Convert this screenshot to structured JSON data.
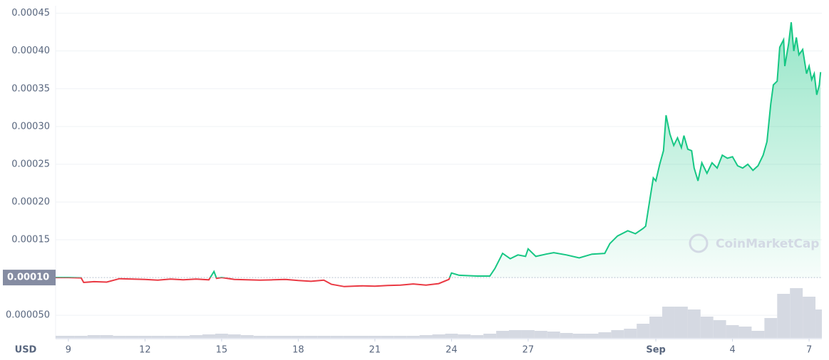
{
  "chart_data": {
    "type": "line",
    "axis_label": "USD",
    "watermark": "CoinMarketCap",
    "baseline": 0.0001,
    "up_color": "#16c784",
    "down_color": "#ea3943",
    "grid": true,
    "xlim": [
      8.5,
      38.5
    ],
    "ylim": [
      2e-05,
      0.00046
    ],
    "xticks": [
      9,
      12,
      15,
      18,
      21,
      24,
      27,
      {
        "value": 32,
        "label": "Sep"
      },
      {
        "value": 35,
        "label": "4"
      },
      {
        "value": 38,
        "label": "7"
      }
    ],
    "yticks": [
      0.00045,
      {
        "value": 0.0004,
        "label": "0.00040"
      },
      0.00035,
      {
        "value": 0.0003,
        "label": "0.00030"
      },
      0.00025,
      {
        "value": 0.0002,
        "label": "0.00020"
      },
      0.00015,
      {
        "value": 0.0001,
        "label": "0.00010"
      },
      {
        "value": 5e-05,
        "label": "0.000050"
      }
    ],
    "x": [
      8.5,
      9,
      9.5,
      9.6,
      10,
      10.5,
      11,
      11.5,
      12,
      12.5,
      13,
      13.5,
      14,
      14.5,
      14.7,
      14.8,
      15,
      15.5,
      16,
      16.5,
      17,
      17.5,
      18,
      18.5,
      19,
      19.3,
      19.8,
      20.5,
      21,
      21.5,
      22,
      22.5,
      23,
      23.5,
      23.9,
      24,
      24.3,
      25,
      25.5,
      25.7,
      26,
      26.3,
      26.6,
      26.9,
      27,
      27.3,
      27.7,
      28,
      28.5,
      29,
      29.5,
      30,
      30.2,
      30.5,
      30.9,
      31.2,
      31.5,
      31.6,
      31.75,
      31.9,
      32,
      32.15,
      32.3,
      32.4,
      32.55,
      32.7,
      32.85,
      33,
      33.1,
      33.25,
      33.4,
      33.5,
      33.65,
      33.8,
      34,
      34.2,
      34.4,
      34.6,
      34.8,
      35,
      35.2,
      35.4,
      35.6,
      35.8,
      36,
      36.2,
      36.35,
      36.5,
      36.6,
      36.75,
      36.85,
      37,
      37.05,
      37.2,
      37.3,
      37.4,
      37.5,
      37.6,
      37.75,
      37.9,
      38,
      38.1,
      38.2,
      38.3,
      38.4,
      38.45
    ],
    "values": [
      0.0001,
      0.0001,
      9.95e-05,
      9.35e-05,
      9.45e-05,
      9.4e-05,
      9.85e-05,
      9.8e-05,
      9.75e-05,
      9.65e-05,
      9.8e-05,
      9.7e-05,
      9.8e-05,
      9.7e-05,
      0.000108,
      9.9e-05,
      0.0001,
      9.75e-05,
      9.7e-05,
      9.65e-05,
      9.7e-05,
      9.75e-05,
      9.6e-05,
      9.5e-05,
      9.65e-05,
      9.1e-05,
      8.8e-05,
      8.9e-05,
      8.85e-05,
      8.95e-05,
      9e-05,
      9.15e-05,
      9e-05,
      9.2e-05,
      9.75e-05,
      0.000106,
      0.000103,
      0.000102,
      0.000102,
      0.000112,
      0.000132,
      0.000125,
      0.00013,
      0.000128,
      0.000138,
      0.000128,
      0.000131,
      0.000133,
      0.00013,
      0.000126,
      0.000131,
      0.000132,
      0.000145,
      0.000155,
      0.000162,
      0.000158,
      0.000165,
      0.000168,
      0.0002,
      0.000232,
      0.000228,
      0.00025,
      0.000268,
      0.000315,
      0.00029,
      0.000275,
      0.000285,
      0.000272,
      0.000288,
      0.00027,
      0.000268,
      0.000245,
      0.000228,
      0.000252,
      0.000238,
      0.000252,
      0.000245,
      0.000262,
      0.000258,
      0.00026,
      0.000248,
      0.000245,
      0.00025,
      0.000242,
      0.000248,
      0.000262,
      0.00028,
      0.00033,
      0.000355,
      0.00036,
      0.000405,
      0.000415,
      0.00038,
      0.00041,
      0.000438,
      0.0004,
      0.000418,
      0.000395,
      0.000402,
      0.00037,
      0.00038,
      0.000362,
      0.00037,
      0.000342,
      0.000355,
      0.000372
    ],
    "volume": {
      "color": "#d5d9e2",
      "ylim": [
        0,
        100
      ],
      "x": [
        8.5,
        9,
        9.5,
        10,
        10.5,
        11,
        11.5,
        12,
        12.5,
        13,
        13.5,
        14,
        14.5,
        15,
        15.5,
        16,
        16.5,
        17,
        17.5,
        18,
        18.5,
        19,
        19.5,
        20,
        20.5,
        21,
        21.5,
        22,
        22.5,
        23,
        23.5,
        24,
        24.5,
        25,
        25.5,
        26,
        26.5,
        27,
        27.5,
        28,
        28.5,
        29,
        29.5,
        30,
        30.5,
        31,
        31.5,
        32,
        32.5,
        33,
        33.5,
        34,
        34.5,
        35,
        35.5,
        36,
        36.5,
        37,
        37.5,
        38,
        38.5
      ],
      "values": [
        3,
        3,
        3,
        4,
        4,
        3,
        3,
        3,
        3,
        3,
        3,
        4,
        5,
        6,
        5,
        4,
        3,
        3,
        3,
        3,
        3,
        3,
        3,
        3,
        3,
        3,
        3,
        3,
        3,
        4,
        5,
        6,
        5,
        4,
        6,
        10,
        11,
        11,
        10,
        9,
        7,
        6,
        6,
        8,
        11,
        13,
        20,
        30,
        44,
        44,
        40,
        30,
        25,
        18,
        16,
        10,
        28,
        62,
        70,
        58,
        40
      ]
    }
  }
}
